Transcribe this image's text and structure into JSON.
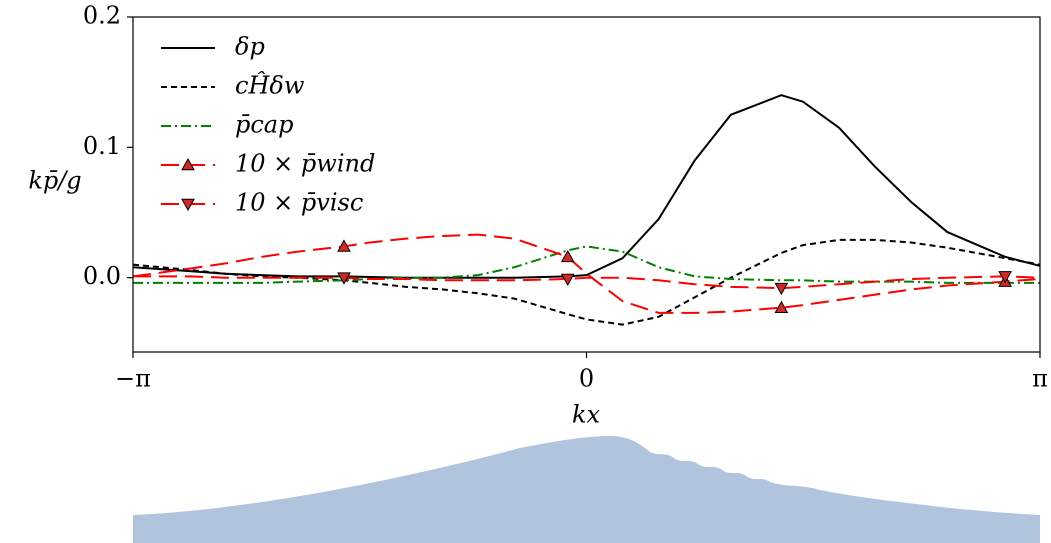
{
  "chart_data": {
    "type": "line",
    "xlabel": "kx",
    "ylabel": "kp̄/g",
    "x": [
      -3.1416,
      -2.75,
      -2.5,
      -2.25,
      -2,
      -1.68,
      -1.5,
      -1.25,
      -1,
      -0.75,
      -0.5,
      -0.13,
      0,
      0.25,
      0.5,
      0.75,
      1,
      1.35,
      1.5,
      1.75,
      2,
      2.25,
      2.5,
      2.9,
      3.1416
    ],
    "series": [
      {
        "name": "δp",
        "color": "#000000",
        "dash": "solid",
        "values": [
          0.008,
          0.005,
          0.003,
          0.002,
          0.001,
          0.001,
          0.0005,
          0,
          0,
          0,
          0,
          0.001,
          0.002,
          0.015,
          0.045,
          0.09,
          0.125,
          0.14,
          0.135,
          0.115,
          0.085,
          0.058,
          0.035,
          0.016,
          0.009
        ]
      },
      {
        "name": "cĤδw",
        "color": "#000000",
        "dash": "dashed",
        "values": [
          0.01,
          0.006,
          0.003,
          0.001,
          0,
          -0.002,
          -0.004,
          -0.007,
          -0.009,
          -0.012,
          -0.016,
          -0.028,
          -0.032,
          -0.036,
          -0.03,
          -0.015,
          0,
          0.019,
          0.025,
          0.029,
          0.029,
          0.027,
          0.023,
          0.015,
          0.01
        ]
      },
      {
        "name": "p̄cap",
        "color": "#008000",
        "dash": "dashdot",
        "values": [
          -0.004,
          -0.004,
          -0.004,
          -0.004,
          -0.003,
          -0.002,
          -0.001,
          0,
          0,
          0.002,
          0.008,
          0.021,
          0.024,
          0.02,
          0.008,
          0.001,
          -0.001,
          -0.002,
          -0.002,
          -0.003,
          -0.003,
          -0.003,
          -0.004,
          -0.004,
          -0.004
        ]
      },
      {
        "name": "10 × p̄wind",
        "color": "#ff0000",
        "dash": "longdash",
        "marker": "up",
        "values": [
          0.001,
          0.007,
          0.011,
          0.016,
          0.02,
          0.024,
          0.027,
          0.03,
          0.032,
          0.033,
          0.03,
          0.016,
          0.003,
          -0.018,
          -0.027,
          -0.027,
          -0.026,
          -0.023,
          -0.021,
          -0.017,
          -0.013,
          -0.009,
          -0.006,
          -0.003,
          -0.001
        ]
      },
      {
        "name": "10 × p̄visc",
        "color": "#ff0000",
        "dash": "longdash",
        "marker": "down",
        "values": [
          0.001,
          0.001,
          0,
          0,
          0,
          0,
          -0.001,
          -0.001,
          -0.002,
          -0.002,
          -0.002,
          -0.001,
          0,
          0,
          -0.002,
          -0.005,
          -0.007,
          -0.008,
          -0.007,
          -0.005,
          -0.003,
          -0.001,
          0,
          0.001,
          0
        ]
      }
    ],
    "xlim": [
      -3.1416,
      3.1416
    ],
    "xticks": [
      {
        "value": -3.1416,
        "label": "−π"
      },
      0,
      {
        "value": 3.1416,
        "label": "π"
      }
    ],
    "ylim": [
      -0.057,
      0.2
    ],
    "yticks": [
      {
        "value": 0,
        "label": "0.0"
      },
      {
        "value": 0.1,
        "label": "0.1"
      },
      {
        "value": 0.2,
        "label": "0.2"
      }
    ],
    "legend": "upper left",
    "grid": false
  }
}
